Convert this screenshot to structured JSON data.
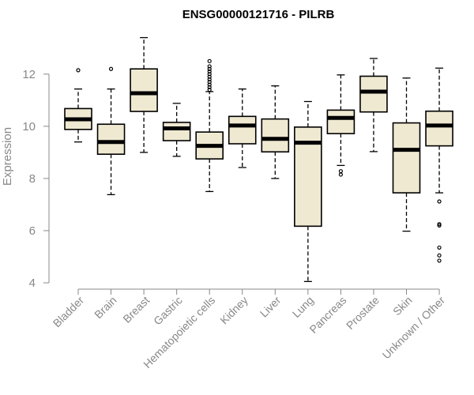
{
  "chart_data": {
    "type": "boxplot",
    "title": "ENSG00000121716 - PILRB",
    "ylabel": "Expression",
    "xlabel": "",
    "ylim": [
      4,
      13.6
    ],
    "yticks": [
      4,
      6,
      8,
      10,
      12
    ],
    "grid": false,
    "box_fill": "#efe9d2",
    "categories": [
      "Bladder",
      "Brain",
      "Breast",
      "Gastric",
      "Hematopoietic cells",
      "Kidney",
      "Liver",
      "Lung",
      "Pancreas",
      "Prostate",
      "Skin",
      "Unknown / Other"
    ],
    "boxes": [
      {
        "whisker_low": 9.4,
        "q1": 9.88,
        "median": 10.27,
        "q3": 10.68,
        "whisker_high": 11.43,
        "outliers": [
          12.15
        ]
      },
      {
        "whisker_low": 7.38,
        "q1": 8.93,
        "median": 9.4,
        "q3": 10.08,
        "whisker_high": 11.43,
        "outliers": [
          12.2
        ]
      },
      {
        "whisker_low": 9.0,
        "q1": 10.57,
        "median": 11.27,
        "q3": 12.2,
        "whisker_high": 13.4,
        "outliers": []
      },
      {
        "whisker_low": 8.85,
        "q1": 9.45,
        "median": 9.92,
        "q3": 10.15,
        "whisker_high": 10.88,
        "outliers": []
      },
      {
        "whisker_low": 7.5,
        "q1": 8.75,
        "median": 9.25,
        "q3": 9.78,
        "whisker_high": 11.33,
        "outliers": [
          11.4,
          11.5,
          11.6,
          11.7,
          11.8,
          11.9,
          12.0,
          12.1,
          12.2,
          12.3,
          12.5
        ]
      },
      {
        "whisker_low": 8.42,
        "q1": 9.33,
        "median": 10.03,
        "q3": 10.38,
        "whisker_high": 11.43,
        "outliers": []
      },
      {
        "whisker_low": 8.0,
        "q1": 9.02,
        "median": 9.52,
        "q3": 10.28,
        "whisker_high": 11.55,
        "outliers": []
      },
      {
        "whisker_low": 4.05,
        "q1": 6.17,
        "median": 9.37,
        "q3": 9.97,
        "whisker_high": 10.95,
        "outliers": []
      },
      {
        "whisker_low": 8.5,
        "q1": 9.72,
        "median": 10.32,
        "q3": 10.62,
        "whisker_high": 11.97,
        "outliers": [
          8.15,
          8.28
        ]
      },
      {
        "whisker_low": 9.03,
        "q1": 10.55,
        "median": 11.33,
        "q3": 11.92,
        "whisker_high": 12.6,
        "outliers": []
      },
      {
        "whisker_low": 5.98,
        "q1": 7.45,
        "median": 9.1,
        "q3": 10.13,
        "whisker_high": 11.85,
        "outliers": []
      },
      {
        "whisker_low": 7.45,
        "q1": 9.25,
        "median": 10.03,
        "q3": 10.58,
        "whisker_high": 12.23,
        "outliers": [
          4.85,
          5.05,
          5.35,
          6.2,
          6.25,
          7.12
        ]
      }
    ]
  }
}
